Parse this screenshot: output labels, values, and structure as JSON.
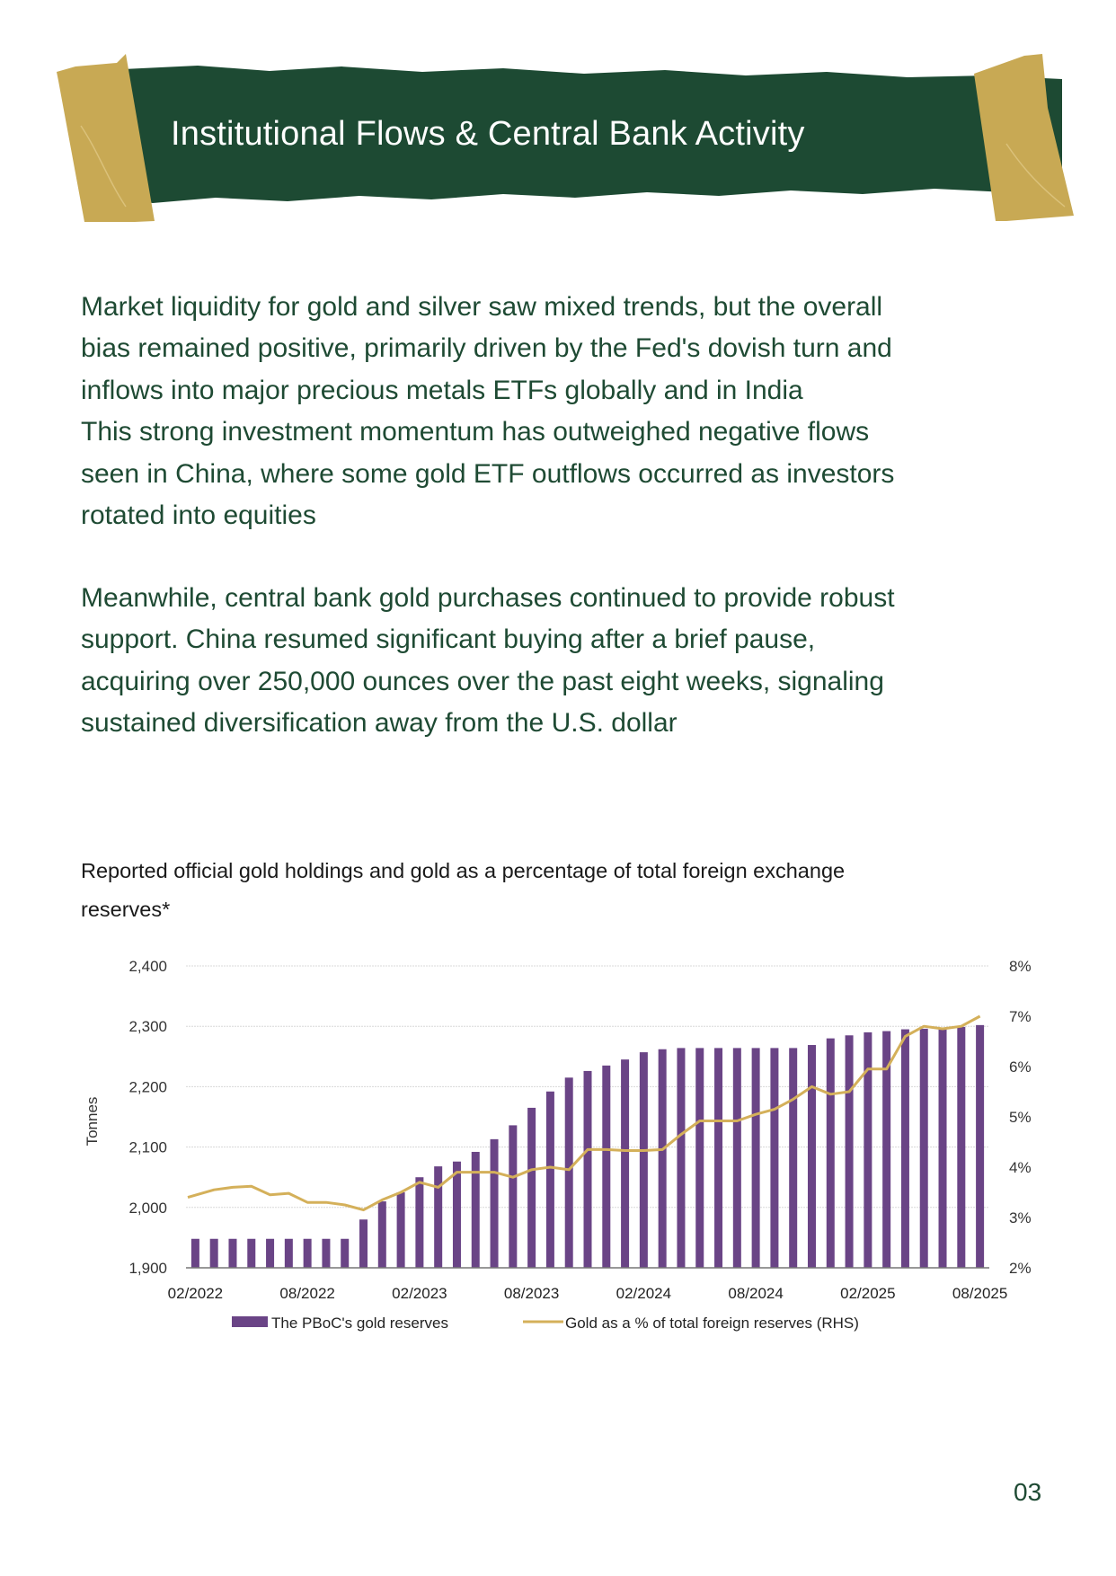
{
  "header": {
    "title": "Institutional Flows & Central Bank Activity"
  },
  "body": {
    "paragraph1_lines": [
      "Market liquidity for gold and silver saw mixed trends, but the overall",
      "bias remained positive, primarily driven by the Fed's dovish turn and",
      "inflows into major precious metals ETFs globally and in India",
      "This strong investment momentum has outweighed negative flows",
      "seen in China, where some gold ETF outflows occurred as investors",
      "rotated into equities"
    ],
    "paragraph2_lines": [
      "Meanwhile, central bank gold purchases continued to provide robust",
      "support. China resumed significant buying after a brief pause,",
      "acquiring over 250,000 ounces over the past eight weeks, signaling",
      "sustained diversification away from the U.S. dollar"
    ]
  },
  "chart_data": {
    "type": "bar+line",
    "title": "Reported official gold holdings and gold as a percentage of total foreign exchange reserves*",
    "title_lines": [
      "Reported official gold holdings and gold as a percentage of total foreign exchange",
      "reserves*"
    ],
    "ylabel": "Tonnes",
    "ylim": [
      1900,
      2400
    ],
    "y_ticks": [
      "1,900",
      "2,000",
      "2,100",
      "2,200",
      "2,300",
      "2,400"
    ],
    "y2lim": [
      2,
      8
    ],
    "y2_ticks": [
      "2%",
      "3%",
      "4%",
      "5%",
      "6%",
      "7%",
      "8%"
    ],
    "x_tick_labels": [
      "02/2022",
      "08/2022",
      "02/2023",
      "08/2023",
      "02/2024",
      "08/2024",
      "02/2025",
      "08/2025"
    ],
    "grid": true,
    "legend_position": "bottom",
    "categories": [
      "02/2022",
      "03/2022",
      "04/2022",
      "05/2022",
      "06/2022",
      "07/2022",
      "08/2022",
      "09/2022",
      "10/2022",
      "11/2022",
      "12/2022",
      "01/2023",
      "02/2023",
      "03/2023",
      "04/2023",
      "05/2023",
      "06/2023",
      "07/2023",
      "08/2023",
      "09/2023",
      "10/2023",
      "11/2023",
      "12/2023",
      "01/2024",
      "02/2024",
      "03/2024",
      "04/2024",
      "05/2024",
      "06/2024",
      "07/2024",
      "08/2024",
      "09/2024",
      "10/2024",
      "11/2024",
      "12/2024",
      "01/2025",
      "02/2025",
      "03/2025",
      "04/2025",
      "05/2025",
      "06/2025",
      "07/2025",
      "08/2025"
    ],
    "series": [
      {
        "name": "The PBoC's gold reserves",
        "type": "bar",
        "axis": "left",
        "color": "#6a4486",
        "values": [
          1948,
          1948,
          1948,
          1948,
          1948,
          1948,
          1948,
          1948,
          1948,
          1980,
          2010,
          2025,
          2050,
          2068,
          2076,
          2092,
          2113,
          2136,
          2165,
          2192,
          2215,
          2226,
          2235,
          2245,
          2257,
          2262,
          2264,
          2264,
          2264,
          2264,
          2264,
          2264,
          2264,
          2269,
          2280,
          2285,
          2290,
          2292,
          2295,
          2296,
          2298,
          2299,
          2302
        ]
      },
      {
        "name": "Gold as a % of total foreign reserves (RHS)",
        "type": "line",
        "axis": "right",
        "color": "#d4b05a",
        "values": [
          3.4,
          3.55,
          3.6,
          3.62,
          3.45,
          3.48,
          3.3,
          3.3,
          3.25,
          3.15,
          3.35,
          3.5,
          3.7,
          3.6,
          3.9,
          3.9,
          3.9,
          3.8,
          3.95,
          4.0,
          3.95,
          4.35,
          4.35,
          4.33,
          4.33,
          4.35,
          4.65,
          4.92,
          4.92,
          4.92,
          5.05,
          5.15,
          5.35,
          5.6,
          5.45,
          5.5,
          5.95,
          5.95,
          6.6,
          6.8,
          6.75,
          6.8,
          7.0
        ]
      }
    ]
  },
  "footer": {
    "page_number": "03"
  },
  "colors": {
    "brand_green": "#1d4a33",
    "tape_gold": "#c8a954",
    "text_green": "#1e4a33"
  }
}
